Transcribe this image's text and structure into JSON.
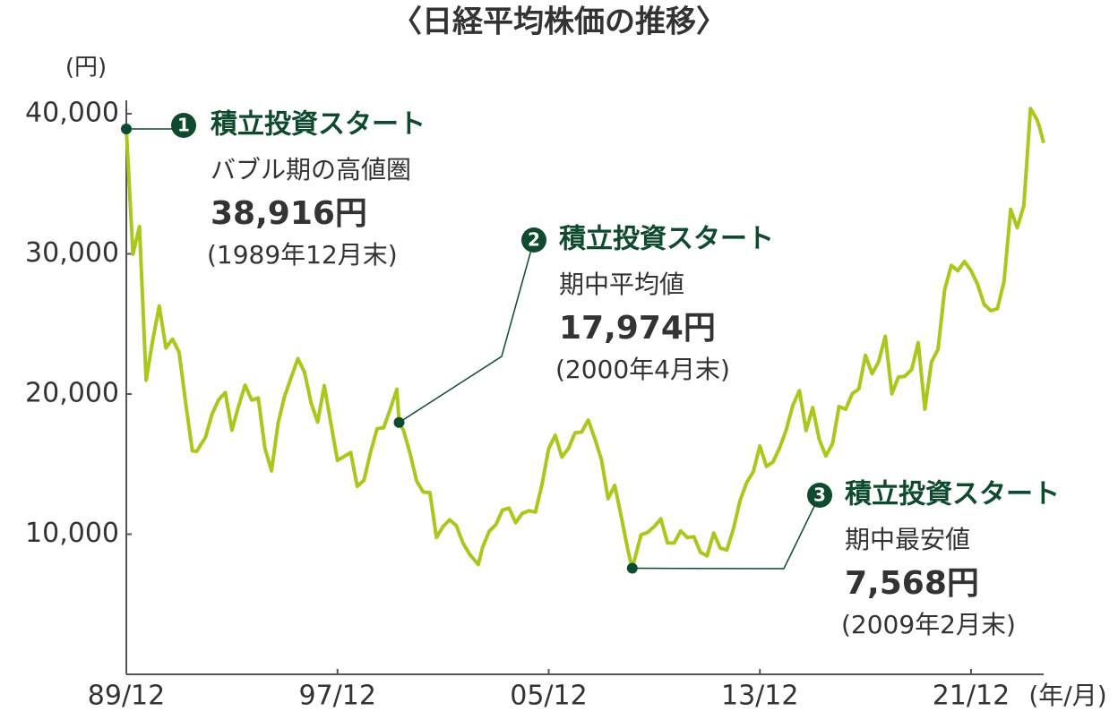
{
  "chart_data": {
    "type": "line",
    "title": "〈日経平均株価の推移〉",
    "y_label": "(円)",
    "x_label": "(年/月)",
    "x": [
      "89/12",
      "90/03",
      "90/06",
      "90/09",
      "90/12",
      "91/03",
      "91/06",
      "91/09",
      "91/12",
      "92/03",
      "92/06",
      "92/08",
      "92/12",
      "93/03",
      "93/06",
      "93/09",
      "93/12",
      "94/03",
      "94/06",
      "94/09",
      "94/12",
      "95/03",
      "95/06",
      "95/09",
      "95/12",
      "96/06",
      "96/09",
      "96/12",
      "97/03",
      "97/06",
      "97/09",
      "97/12",
      "98/06",
      "98/09",
      "98/12",
      "99/03",
      "99/06",
      "99/09",
      "99/12",
      "00/03",
      "00/04",
      "00/06",
      "00/09",
      "00/12",
      "01/03",
      "01/06",
      "01/09",
      "01/12",
      "02/03",
      "02/06",
      "02/09",
      "02/12",
      "03/04",
      "03/06",
      "03/09",
      "03/12",
      "04/03",
      "04/06",
      "04/09",
      "04/12",
      "05/03",
      "05/06",
      "05/09",
      "05/12",
      "06/03",
      "06/06",
      "06/09",
      "06/12",
      "07/03",
      "07/06",
      "07/09",
      "07/12",
      "08/03",
      "08/06",
      "08/09",
      "08/12",
      "09/02",
      "09/06",
      "09/09",
      "09/12",
      "10/03",
      "10/06",
      "10/09",
      "10/12",
      "11/03",
      "11/06",
      "11/09",
      "11/12",
      "12/03",
      "12/06",
      "12/09",
      "12/12",
      "13/03",
      "13/06",
      "13/09",
      "13/12",
      "14/03",
      "14/06",
      "14/09",
      "14/12",
      "15/03",
      "15/06",
      "15/09",
      "15/12",
      "16/03",
      "16/06",
      "16/09",
      "16/12",
      "17/03",
      "17/06",
      "17/09",
      "17/12",
      "18/03",
      "18/06",
      "18/09",
      "18/12",
      "19/03",
      "19/06",
      "19/09",
      "19/12",
      "20/03",
      "20/06",
      "20/09",
      "20/12",
      "21/03",
      "21/06",
      "21/09",
      "21/12",
      "22/03",
      "22/06",
      "22/09",
      "22/12",
      "23/03",
      "23/06",
      "23/09",
      "23/12",
      "24/03",
      "24/06",
      "24/07",
      "24/09"
    ],
    "series": [
      {
        "color": "#a9c81c",
        "values": [
          38916,
          29980,
          31940,
          20980,
          23850,
          26290,
          23290,
          23920,
          22980,
          19350,
          15950,
          15910,
          16920,
          18590,
          19590,
          20100,
          17420,
          19110,
          20640,
          19560,
          19720,
          16140,
          14520,
          17910,
          19870,
          22530,
          21560,
          19360,
          18000,
          20600,
          17890,
          15260,
          15830,
          13410,
          13840,
          15840,
          17530,
          17600,
          18930,
          20340,
          17974,
          17410,
          15750,
          13790,
          13000,
          12970,
          9770,
          10540,
          11020,
          10620,
          9380,
          8580,
          7830,
          9080,
          10220,
          10680,
          11720,
          11860,
          10820,
          11490,
          11670,
          11580,
          13570,
          16110,
          17060,
          15500,
          16130,
          17230,
          17290,
          18140,
          16790,
          15310,
          12530,
          13480,
          11260,
          8860,
          7568,
          9960,
          10130,
          10550,
          11090,
          9380,
          9370,
          10230,
          9760,
          9820,
          8700,
          8460,
          10080,
          9010,
          8870,
          10400,
          12400,
          13680,
          14460,
          16290,
          14830,
          15160,
          16170,
          17450,
          19210,
          20240,
          17390,
          19030,
          16760,
          15580,
          16450,
          19110,
          18910,
          20030,
          20360,
          22760,
          21450,
          22300,
          24120,
          20010,
          21210,
          21280,
          21760,
          23660,
          18920,
          22290,
          23190,
          27440,
          29180,
          28790,
          29450,
          28790,
          27820,
          26390,
          25940,
          26090,
          28040,
          33190,
          31860,
          33460,
          40370,
          39580,
          39100,
          37920
        ]
      }
    ],
    "xlim": [
      "89/12",
      "24/09"
    ],
    "xticks": [
      "89/12",
      "97/12",
      "05/12",
      "13/12",
      "21/12"
    ],
    "ylim": [
      0,
      40000
    ],
    "yticks": [
      {
        "value": 10000,
        "label": "10,000"
      },
      {
        "value": 20000,
        "label": "20,000"
      },
      {
        "value": 30000,
        "label": "30,000"
      },
      {
        "value": 40000,
        "label": "40,000"
      }
    ],
    "grid": false,
    "annotation_color": "#0d4a2e",
    "annotations": [
      {
        "marker": "1",
        "heading": "積立投資スタート",
        "text": "バブル期の高値圏",
        "x": "89/12",
        "value": 38916,
        "label": "38,916円",
        "date": "(1989年12月末)"
      },
      {
        "marker": "2",
        "heading": "積立投資スタート",
        "text": "期中平均値",
        "x": "00/04",
        "value": 17974,
        "label": "17,974円",
        "date": "(2000年4月末)"
      },
      {
        "marker": "3",
        "heading": "積立投資スタート",
        "text": "期中最安値",
        "x": "09/02",
        "value": 7568,
        "label": "7,568円",
        "date": "(2009年2月末)"
      }
    ]
  }
}
